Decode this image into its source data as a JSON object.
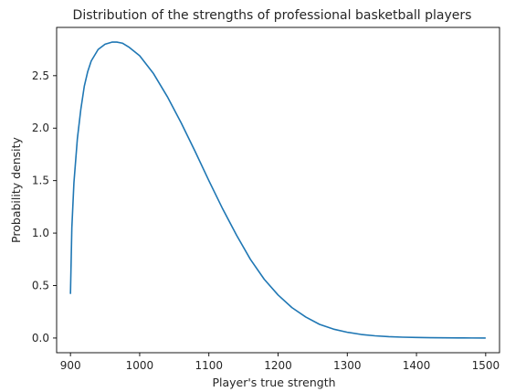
{
  "chart_data": {
    "type": "line",
    "title": "Distribution of the strengths of professional basketball players",
    "xlabel": "Player's true strength",
    "ylabel": "Probability density",
    "xlim": [
      880,
      1520
    ],
    "ylim": [
      -0.14,
      2.96
    ],
    "xticks": [
      900,
      1000,
      1100,
      1200,
      1300,
      1400,
      1500
    ],
    "xtick_labels": [
      "900",
      "1000",
      "1100",
      "1200",
      "1300",
      "1400",
      "1500"
    ],
    "yticks": [
      0.0,
      0.5,
      1.0,
      1.5,
      2.0,
      2.5
    ],
    "ytick_labels": [
      "0.0",
      "0.5",
      "1.0",
      "1.5",
      "2.0",
      "2.5"
    ],
    "grid": false,
    "colors": {
      "line": "#1f77b4",
      "axis": "#000000",
      "text": "#262626"
    },
    "series": [
      {
        "x": [
          900,
          902,
          905,
          910,
          915,
          920,
          925,
          930,
          940,
          950,
          960,
          967,
          975,
          985,
          1000,
          1020,
          1040,
          1060,
          1080,
          1100,
          1120,
          1140,
          1160,
          1180,
          1200,
          1220,
          1240,
          1260,
          1280,
          1300,
          1320,
          1340,
          1360,
          1380,
          1400,
          1420,
          1440,
          1460,
          1480,
          1500
        ],
        "values": [
          0.42,
          1.05,
          1.48,
          1.9,
          2.18,
          2.4,
          2.54,
          2.64,
          2.75,
          2.8,
          2.82,
          2.82,
          2.81,
          2.77,
          2.69,
          2.52,
          2.3,
          2.05,
          1.78,
          1.5,
          1.23,
          0.98,
          0.75,
          0.56,
          0.41,
          0.29,
          0.2,
          0.13,
          0.085,
          0.055,
          0.034,
          0.021,
          0.013,
          0.008,
          0.005,
          0.003,
          0.002,
          0.001,
          0.0005,
          0.0003
        ]
      }
    ]
  }
}
